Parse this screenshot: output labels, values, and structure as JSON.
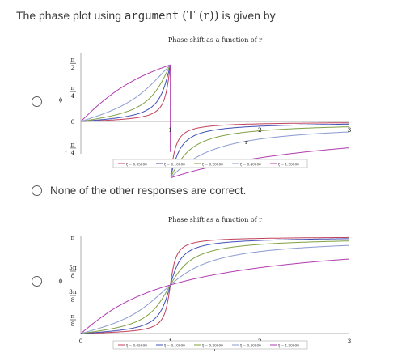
{
  "question": {
    "prefix": "The phase plot using ",
    "func": "argument",
    "expr": "(T (r))",
    "suffix": " is given by"
  },
  "options": [
    {
      "id": "a",
      "type": "chart"
    },
    {
      "id": "b",
      "type": "text",
      "label": "None of the other responses are correct."
    },
    {
      "id": "c",
      "type": "chart"
    }
  ],
  "chart_data": [
    {
      "type": "line",
      "title": "Phase shift as a function of r",
      "xlabel": "r",
      "ylabel": "ϕ",
      "x_ticks": [
        "1",
        "2",
        "3"
      ],
      "y_ticks": [
        "π/2",
        "π/4",
        "0",
        "-π/4"
      ],
      "xlim": [
        0,
        3
      ],
      "ylim": [
        -0.9,
        1.8
      ],
      "colors": {
        "0.05": "#c0405a",
        "0.1": "#4050b8",
        "0.2": "#7fa040",
        "0.4": "#8a9ad0",
        "1.2": "#b03ab0"
      },
      "series": [
        {
          "name": "ξ = 0.05000",
          "zeta": 0.05
        },
        {
          "name": "ξ = 0.10000",
          "zeta": 0.1
        },
        {
          "name": "ξ = 0.20000",
          "zeta": 0.2
        },
        {
          "name": "ξ = 0.40000",
          "zeta": 0.4
        },
        {
          "name": "ξ = 1.20000",
          "zeta": 1.2
        }
      ]
    },
    {
      "type": "line",
      "title": "Phase shift as a function of r",
      "xlabel": "r",
      "ylabel": "ϕ",
      "x_ticks": [
        "0",
        "1",
        "2",
        "3"
      ],
      "y_ticks": [
        "π",
        "5π/8",
        "3π/8",
        "π/8"
      ],
      "xlim": [
        0,
        3
      ],
      "ylim": [
        0,
        3.1416
      ],
      "colors": {
        "0.05": "#c0405a",
        "0.1": "#4050b8",
        "0.2": "#7fa040",
        "0.4": "#8a9ad0",
        "1.2": "#b03ab0"
      },
      "series": [
        {
          "name": "ξ = 0.05000",
          "zeta": 0.05
        },
        {
          "name": "ξ = 0.10000",
          "zeta": 0.1
        },
        {
          "name": "ξ = 0.20000",
          "zeta": 0.2
        },
        {
          "name": "ξ = 0.40000",
          "zeta": 0.4
        },
        {
          "name": "ξ = 1.20000",
          "zeta": 1.2
        }
      ]
    }
  ]
}
